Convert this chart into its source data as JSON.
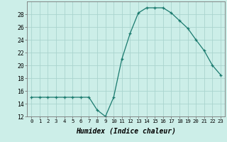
{
  "x": [
    0,
    1,
    2,
    3,
    4,
    5,
    6,
    7,
    8,
    9,
    10,
    11,
    12,
    13,
    14,
    15,
    16,
    17,
    18,
    19,
    20,
    21,
    22,
    23
  ],
  "y": [
    15,
    15,
    15,
    15,
    15,
    15,
    15,
    15,
    13,
    12,
    15,
    21,
    25,
    28.2,
    29,
    29,
    29,
    28.2,
    27,
    25.8,
    24,
    22.3,
    20,
    18.5
  ],
  "line_color": "#1a7a6e",
  "marker": "+",
  "bg_color": "#cceee8",
  "grid_color": "#aad4ce",
  "xlabel": "Humidex (Indice chaleur)",
  "ylim": [
    12,
    30
  ],
  "xlim": [
    -0.5,
    23.5
  ],
  "yticks": [
    12,
    14,
    16,
    18,
    20,
    22,
    24,
    26,
    28
  ],
  "xticks": [
    0,
    1,
    2,
    3,
    4,
    5,
    6,
    7,
    8,
    9,
    10,
    11,
    12,
    13,
    14,
    15,
    16,
    17,
    18,
    19,
    20,
    21,
    22,
    23
  ]
}
